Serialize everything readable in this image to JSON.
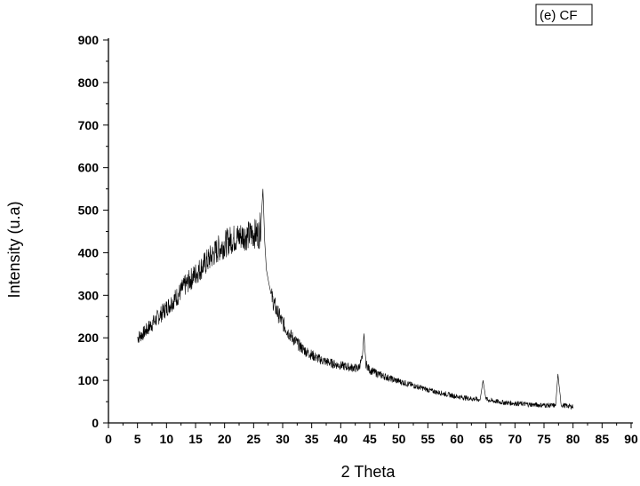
{
  "chart_data": {
    "type": "line",
    "title": "",
    "legend_label": "(e) CF",
    "legend_position": "top-right",
    "xlabel": "2 Theta",
    "ylabel": "Intensity (u.a)",
    "xlim": [
      0,
      90
    ],
    "ylim": [
      0,
      900
    ],
    "grid": false,
    "x_ticks": [
      "0",
      "5",
      "10",
      "15",
      "20",
      "25",
      "30",
      "35",
      "40",
      "45",
      "50",
      "55",
      "60",
      "65",
      "70",
      "75",
      "80",
      "85",
      "90"
    ],
    "y_ticks": [
      "0",
      "100",
      "200",
      "300",
      "400",
      "500",
      "600",
      "700",
      "800",
      "900"
    ],
    "series": [
      {
        "color": "#000000",
        "x": [
          5,
          6,
          7,
          8,
          9,
          10,
          11,
          12,
          13,
          14,
          15,
          16,
          17,
          18,
          19,
          20,
          21,
          22,
          23,
          24,
          25,
          26,
          26.3,
          26.6,
          26.9,
          27.2,
          28,
          29,
          30,
          31,
          32,
          33,
          34,
          35,
          36,
          37,
          38,
          39,
          40,
          41,
          42,
          43,
          43.7,
          44.0,
          44.3,
          45,
          46,
          47,
          48,
          49,
          50,
          51,
          52,
          53,
          54,
          55,
          56,
          57,
          58,
          59,
          60,
          61,
          62,
          63,
          64,
          64.5,
          65,
          66,
          67,
          68,
          69,
          70,
          71,
          72,
          73,
          74,
          75,
          76,
          77,
          77.4,
          77.8,
          78,
          79,
          80
        ],
        "y": [
          200,
          210,
          225,
          240,
          255,
          270,
          285,
          300,
          320,
          335,
          350,
          365,
          380,
          395,
          410,
          420,
          430,
          435,
          440,
          440,
          445,
          445,
          475,
          550,
          430,
          360,
          300,
          262,
          235,
          212,
          195,
          180,
          168,
          160,
          152,
          146,
          142,
          138,
          135,
          132,
          130,
          128,
          150,
          210,
          140,
          124,
          118,
          112,
          107,
          102,
          98,
          94,
          90,
          86,
          82,
          78,
          74,
          71,
          68,
          65,
          62,
          60,
          58,
          56,
          54,
          100,
          56,
          52,
          50,
          48,
          47,
          46,
          45,
          44,
          43,
          42,
          42,
          41,
          41,
          115,
          60,
          42,
          40,
          38
        ]
      }
    ]
  }
}
